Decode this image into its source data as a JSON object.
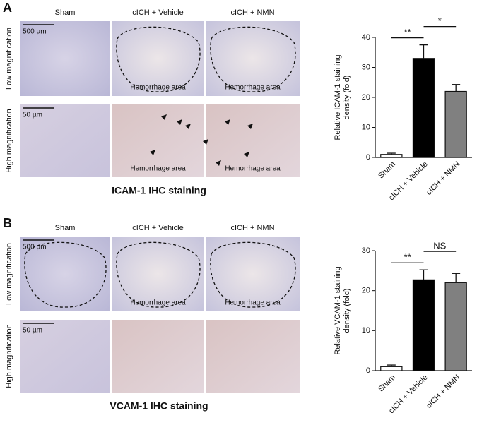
{
  "panels": [
    {
      "label": "A",
      "columns": [
        "Sham",
        "cICH + Vehicle",
        "cICH + NMN"
      ],
      "rows": [
        "Low magnification",
        "High magnification"
      ],
      "scale_bars": [
        "500 µm",
        "50 µm"
      ],
      "region_labels": [
        "Hemorrhage area",
        "Hemorrhage area",
        "Hemorrhage area",
        "Hemorrhage area"
      ],
      "caption": "ICAM-1 IHC staining"
    },
    {
      "label": "B",
      "columns": [
        "Sham",
        "cICH + Vehicle",
        "cICH + NMN"
      ],
      "rows": [
        "Low magnification",
        "High magnification"
      ],
      "scale_bars": [
        "500 µm",
        "50 µm"
      ],
      "region_labels": [
        "Hemorrhage area",
        "Hemorrhage area"
      ],
      "caption": "VCAM-1 IHC staining"
    }
  ],
  "chart_data": [
    {
      "type": "bar",
      "y_label": [
        "Relative ICAM-1 staining",
        "density (fold)"
      ],
      "categories": [
        "Sham",
        "cICH + Vehicle",
        "cICH + NMN"
      ],
      "series": [
        {
          "values": [
            1.0,
            33,
            22
          ],
          "errors": [
            0.4,
            4.5,
            2.3
          ],
          "colors": [
            "#ffffff",
            "#000000",
            "#808080"
          ]
        }
      ],
      "ylim": [
        0,
        40
      ],
      "yticks": [
        0,
        10,
        20,
        30,
        40
      ],
      "annotations": [
        "**",
        "*"
      ]
    },
    {
      "type": "bar",
      "y_label": [
        "Relative VCAM-1 staining",
        "density (fold)"
      ],
      "categories": [
        "Sham",
        "cICH + Vehicle",
        "cICH + NMN"
      ],
      "series": [
        {
          "values": [
            1.0,
            22.7,
            22
          ],
          "errors": [
            0.4,
            2.5,
            2.3
          ],
          "colors": [
            "#ffffff",
            "#000000",
            "#808080"
          ]
        }
      ],
      "ylim": [
        0,
        30
      ],
      "yticks": [
        0,
        10,
        20,
        30
      ],
      "annotations": [
        "**",
        "NS"
      ]
    }
  ]
}
